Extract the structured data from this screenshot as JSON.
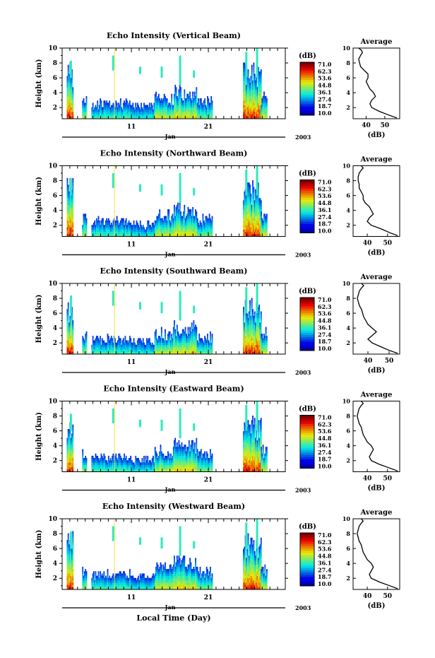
{
  "figure": {
    "xlabel": "Local Time (Day)",
    "month_label": "Jan",
    "year_label": "2003",
    "ylabel": "Height (km)",
    "colorbar_unit": "(dB)",
    "colorbar_ticks": [
      "71.0",
      "62.3",
      "53.6",
      "44.8",
      "36.1",
      "27.4",
      "18.7",
      "10.0"
    ],
    "avg_title": "Average",
    "avg_xlabel": "(dB)",
    "colors": {
      "low": "#1e2fb0",
      "high": "#d61a0c"
    }
  },
  "chart_data": [
    {
      "type": "heatmap",
      "title": "Echo Intensity (Vertical Beam)",
      "xlabel": "Local Time (Day)",
      "ylabel": "Height (km)",
      "x_range": [
        2,
        31
      ],
      "x_ticks": [
        11,
        21
      ],
      "x_tick_labels": [
        "11",
        "21"
      ],
      "ylim": [
        0.5,
        10
      ],
      "y_ticks": [
        2,
        4,
        6,
        8,
        10
      ],
      "colorbar": {
        "label": "(dB)",
        "range": [
          10.0,
          71.0
        ],
        "ticks": [
          71.0,
          62.3,
          53.6,
          44.8,
          36.1,
          27.4,
          18.7,
          10.0
        ]
      },
      "average": {
        "title": "Average",
        "xlabel": "(dB)",
        "xlim": [
          33,
          58
        ],
        "x_ticks": [
          40,
          50
        ],
        "x": [
          56.5,
          52,
          47,
          43,
          42,
          43,
          45,
          44,
          42,
          41,
          40,
          41,
          41,
          39,
          37,
          36.5,
          36,
          37,
          38,
          37.5,
          36
        ],
        "y": [
          0.6,
          1.0,
          1.5,
          2.0,
          2.5,
          3.0,
          3.5,
          4.0,
          4.5,
          5.0,
          5.5,
          6.0,
          6.5,
          7.0,
          7.5,
          8.0,
          8.5,
          9.0,
          9.4,
          9.7,
          10
        ]
      }
    },
    {
      "type": "heatmap",
      "title": "Echo Intensity (Northward Beam)",
      "xlabel": "Local Time (Day)",
      "ylabel": "Height (km)",
      "x_range": [
        2,
        31
      ],
      "x_ticks": [
        11,
        21
      ],
      "x_tick_labels": [
        "11",
        "21"
      ],
      "ylim": [
        0.5,
        10
      ],
      "y_ticks": [
        2,
        4,
        6,
        8,
        10
      ],
      "colorbar": {
        "label": "(dB)",
        "range": [
          10.0,
          71.0
        ],
        "ticks": [
          71.0,
          62.3,
          53.6,
          44.8,
          36.1,
          27.4,
          18.7,
          10.0
        ]
      },
      "average": {
        "title": "Average",
        "xlabel": "(dB)",
        "xlim": [
          33,
          56
        ],
        "x_ticks": [
          40,
          50
        ],
        "x": [
          55,
          51,
          47,
          42,
          40,
          41,
          43,
          42,
          41,
          39,
          38,
          38,
          37,
          36,
          36,
          35.5,
          35.5,
          36,
          37,
          38,
          37
        ],
        "y": [
          0.6,
          1.0,
          1.5,
          2.0,
          2.5,
          3.0,
          3.5,
          4.0,
          4.5,
          5.0,
          5.5,
          6.0,
          6.5,
          7.0,
          7.5,
          8.0,
          8.5,
          9.0,
          9.4,
          9.7,
          10
        ]
      }
    },
    {
      "type": "heatmap",
      "title": "Echo Intensity (Southward Beam)",
      "xlabel": "Local Time (Day)",
      "ylabel": "Height (km)",
      "x_range": [
        2,
        31
      ],
      "x_ticks": [
        11,
        21
      ],
      "x_tick_labels": [
        "11",
        "21"
      ],
      "ylim": [
        0.5,
        10
      ],
      "y_ticks": [
        2,
        4,
        6,
        8,
        10
      ],
      "colorbar": {
        "label": "(dB)",
        "range": [
          10.0,
          71.0
        ],
        "ticks": [
          71.0,
          62.3,
          53.6,
          44.8,
          36.1,
          27.4,
          18.7,
          10.0
        ]
      },
      "average": {
        "title": "Average",
        "xlabel": "(dB)",
        "xlim": [
          33,
          55
        ],
        "x_ticks": [
          40,
          50
        ],
        "x": [
          54,
          50,
          46,
          42,
          40,
          42,
          44,
          42,
          40,
          39,
          38,
          37.5,
          37,
          36,
          35.5,
          35,
          35.5,
          36,
          37,
          38,
          37
        ],
        "y": [
          0.6,
          1.0,
          1.5,
          2.0,
          2.5,
          3.0,
          3.5,
          4.0,
          4.5,
          5.0,
          5.5,
          6.0,
          6.5,
          7.0,
          7.5,
          8.0,
          8.5,
          9.0,
          9.4,
          9.7,
          10
        ]
      }
    },
    {
      "type": "heatmap",
      "title": "Echo Intensity (Eastward Beam)",
      "xlabel": "Local Time (Day)",
      "ylabel": "Height (km)",
      "x_range": [
        2,
        31
      ],
      "x_ticks": [
        11,
        21
      ],
      "x_tick_labels": [
        "11",
        "21"
      ],
      "ylim": [
        0.5,
        10
      ],
      "y_ticks": [
        2,
        4,
        6,
        8,
        10
      ],
      "colorbar": {
        "label": "(dB)",
        "range": [
          10.0,
          71.0
        ],
        "ticks": [
          71.0,
          62.3,
          53.6,
          44.8,
          36.1,
          27.4,
          18.7,
          10.0
        ]
      },
      "average": {
        "title": "Average",
        "xlabel": "(dB)",
        "xlim": [
          33,
          56
        ],
        "x_ticks": [
          40,
          50
        ],
        "x": [
          55,
          51,
          46,
          42,
          41,
          42,
          43,
          42,
          40,
          39,
          38,
          37.5,
          37,
          36,
          35.5,
          35,
          35.5,
          36,
          37,
          38,
          37
        ],
        "y": [
          0.6,
          1.0,
          1.5,
          2.0,
          2.5,
          3.0,
          3.5,
          4.0,
          4.5,
          5.0,
          5.5,
          6.0,
          6.5,
          7.0,
          7.5,
          8.0,
          8.5,
          9.0,
          9.4,
          9.7,
          10
        ]
      }
    },
    {
      "type": "heatmap",
      "title": "Echo Intensity (Westward Beam)",
      "xlabel": "Local Time (Day)",
      "ylabel": "Height (km)",
      "x_range": [
        2,
        31
      ],
      "x_ticks": [
        11,
        21
      ],
      "x_tick_labels": [
        "11",
        "21"
      ],
      "ylim": [
        0.5,
        10
      ],
      "y_ticks": [
        2,
        4,
        6,
        8,
        10
      ],
      "colorbar": {
        "label": "(dB)",
        "range": [
          10.0,
          71.0
        ],
        "ticks": [
          71.0,
          62.3,
          53.6,
          44.8,
          36.1,
          27.4,
          18.7,
          10.0
        ]
      },
      "average": {
        "title": "Average",
        "xlabel": "(dB)",
        "xlim": [
          33,
          56
        ],
        "x_ticks": [
          40,
          50
        ],
        "x": [
          55,
          51,
          46,
          42,
          41,
          42,
          43,
          42,
          40,
          39,
          38,
          37.5,
          37,
          36,
          35.5,
          35,
          35.5,
          36,
          37,
          38,
          37
        ],
        "y": [
          0.6,
          1.0,
          1.5,
          2.0,
          2.5,
          3.0,
          3.5,
          4.0,
          4.5,
          5.0,
          5.5,
          6.0,
          6.5,
          7.0,
          7.5,
          8.0,
          8.5,
          9.0,
          9.4,
          9.7,
          10
        ]
      }
    }
  ]
}
